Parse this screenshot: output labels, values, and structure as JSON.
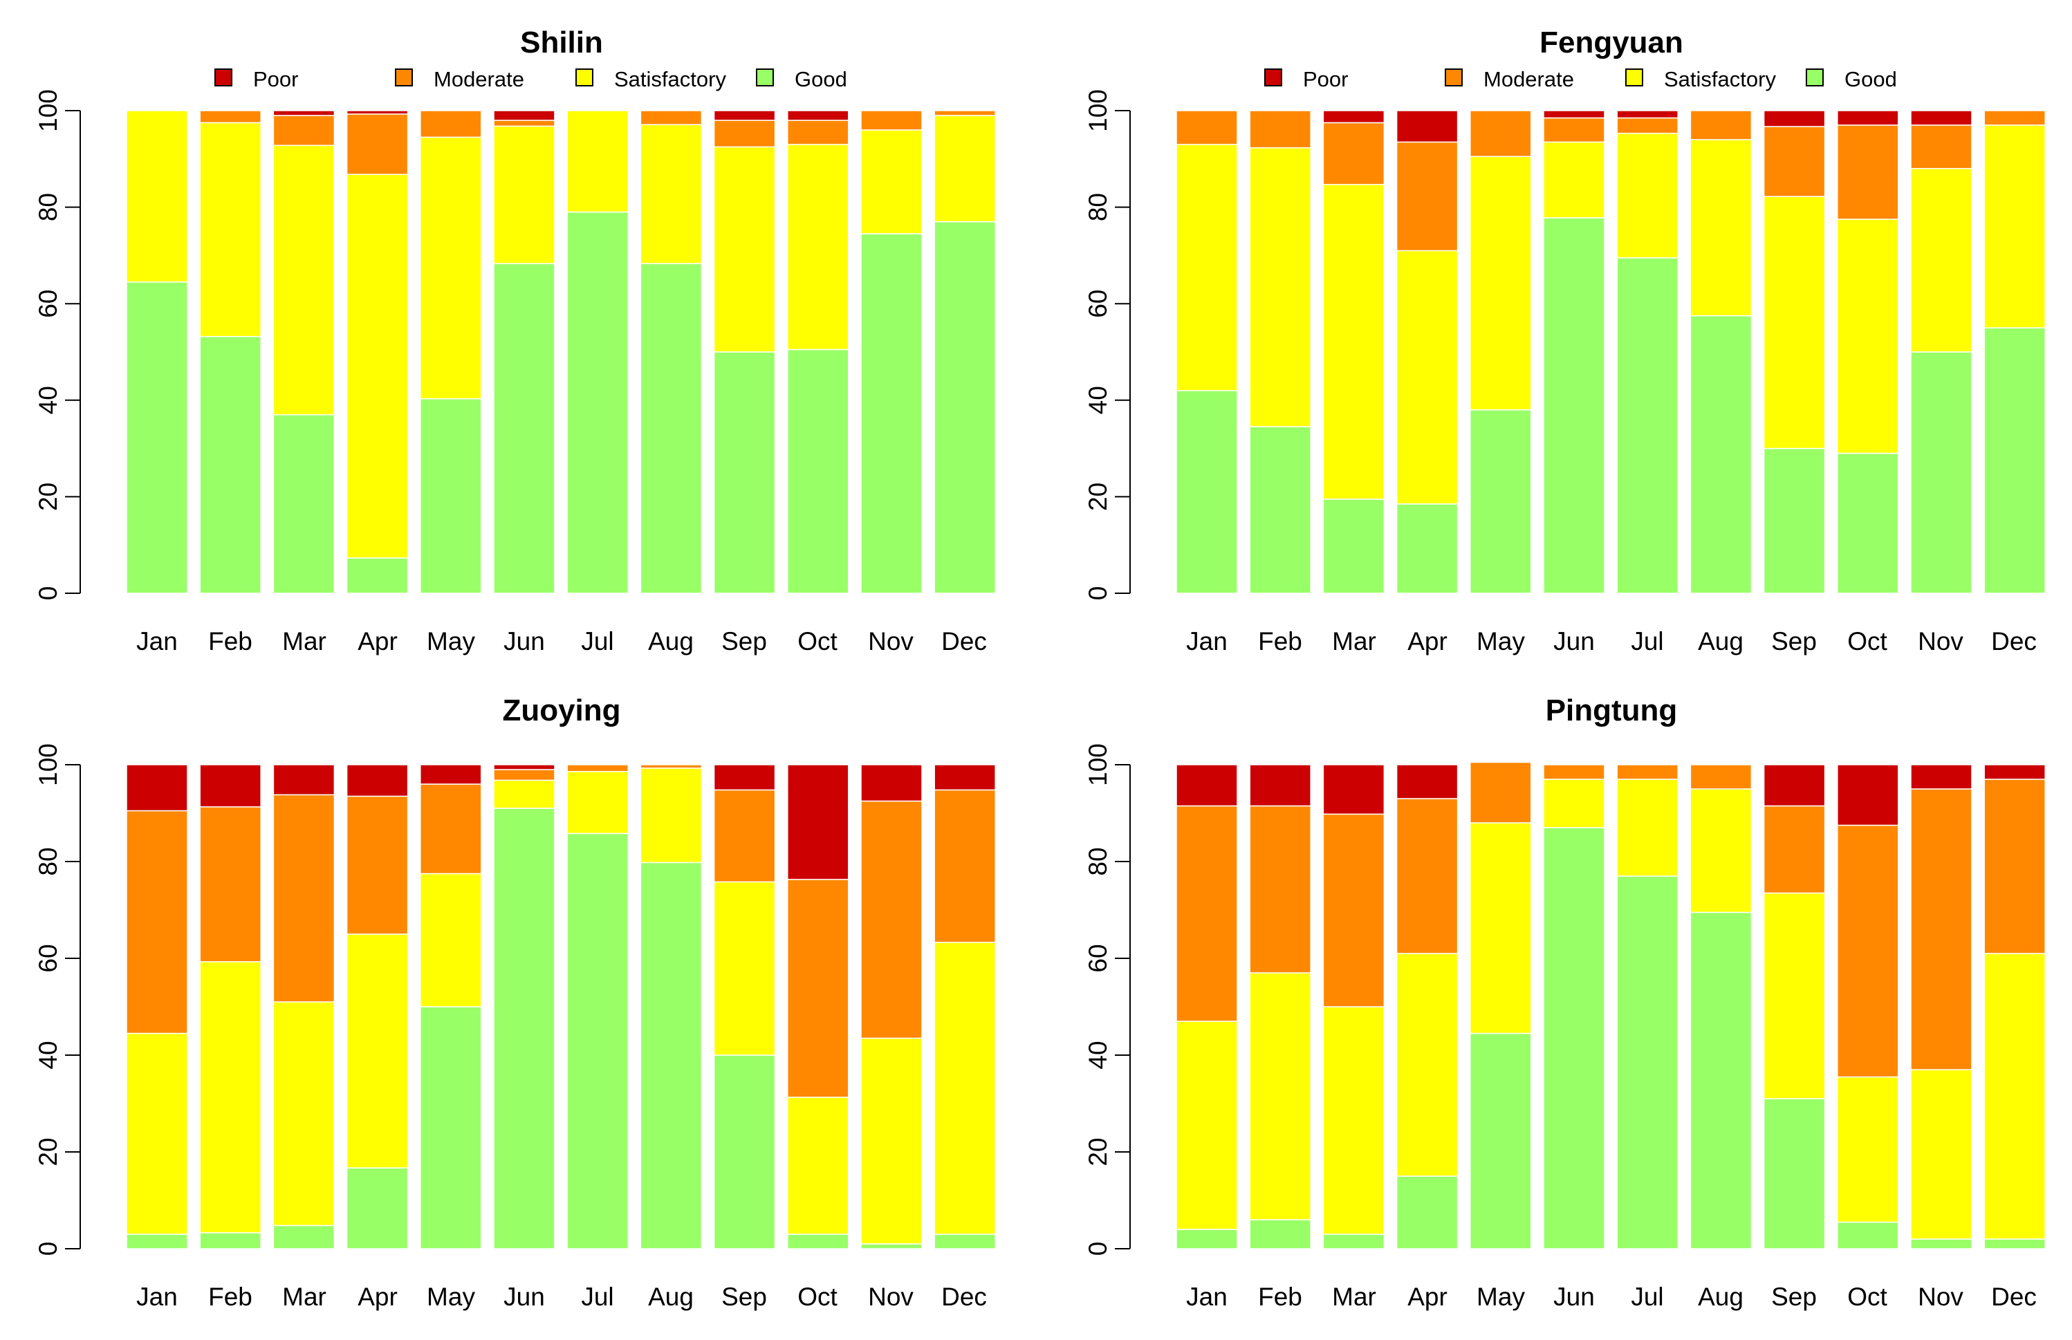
{
  "colors": {
    "Poor": "#cc0000",
    "Moderate": "#ff8800",
    "Satisfactory": "#ffff00",
    "Good": "#99ff66"
  },
  "chart_data": [
    {
      "type": "bar",
      "stacked": true,
      "title": "Shilin",
      "legend": [
        "Poor",
        "Moderate",
        "Satisfactory",
        "Good"
      ],
      "categories": [
        "Jan",
        "Feb",
        "Mar",
        "Apr",
        "May",
        "Jun",
        "Jul",
        "Aug",
        "Sep",
        "Oct",
        "Nov",
        "Dec"
      ],
      "yticks": [
        0,
        20,
        40,
        60,
        80,
        100
      ],
      "ylim": [
        0,
        100
      ],
      "series": [
        {
          "name": "Good",
          "values": [
            64.5,
            53.2,
            37,
            7.3,
            40.3,
            68.3,
            79,
            68.3,
            50,
            50.5,
            74.5,
            77
          ]
        },
        {
          "name": "Satisfactory",
          "values": [
            35.5,
            44.3,
            55.8,
            79.5,
            54.2,
            28.5,
            21,
            28.8,
            42.5,
            42.5,
            21.5,
            22
          ]
        },
        {
          "name": "Moderate",
          "values": [
            0,
            2.5,
            6.2,
            12.5,
            5.5,
            1.2,
            0,
            2.9,
            5.5,
            5,
            4,
            1
          ]
        },
        {
          "name": "Poor",
          "values": [
            0,
            0,
            1,
            0.7,
            0,
            2,
            0,
            0,
            2,
            2,
            0,
            0
          ]
        }
      ]
    },
    {
      "type": "bar",
      "stacked": true,
      "title": "Fengyuan",
      "legend": [
        "Poor",
        "Moderate",
        "Satisfactory",
        "Good"
      ],
      "categories": [
        "Jan",
        "Feb",
        "Mar",
        "Apr",
        "May",
        "Jun",
        "Jul",
        "Aug",
        "Sep",
        "Oct",
        "Nov",
        "Dec"
      ],
      "yticks": [
        0,
        20,
        40,
        60,
        80,
        100
      ],
      "ylim": [
        0,
        100
      ],
      "series": [
        {
          "name": "Good",
          "values": [
            42,
            34.5,
            19.5,
            18.5,
            38,
            77.8,
            69.5,
            57.5,
            30,
            29,
            50,
            55
          ]
        },
        {
          "name": "Satisfactory",
          "values": [
            51,
            57.8,
            65.2,
            52.5,
            52.5,
            15.7,
            25.8,
            36.5,
            52.2,
            48.5,
            38,
            42
          ]
        },
        {
          "name": "Moderate",
          "values": [
            7,
            7.7,
            12.8,
            22.5,
            9.5,
            5,
            3.2,
            6,
            14.5,
            19.5,
            9,
            3
          ]
        },
        {
          "name": "Poor",
          "values": [
            0,
            0,
            2.5,
            6.5,
            0,
            1.5,
            1.5,
            0,
            3.3,
            3,
            3,
            0
          ]
        }
      ]
    },
    {
      "type": "bar",
      "stacked": true,
      "title": "Zuoying",
      "legend": [],
      "categories": [
        "Jan",
        "Feb",
        "Mar",
        "Apr",
        "May",
        "Jun",
        "Jul",
        "Aug",
        "Sep",
        "Oct",
        "Nov",
        "Dec"
      ],
      "yticks": [
        0,
        20,
        40,
        60,
        80,
        100
      ],
      "ylim": [
        0,
        100
      ],
      "series": [
        {
          "name": "Good",
          "values": [
            3,
            3.3,
            4.8,
            16.7,
            50,
            91,
            85.8,
            79.8,
            40,
            3,
            1,
            3
          ]
        },
        {
          "name": "Satisfactory",
          "values": [
            41.5,
            56,
            46.2,
            48.3,
            27.5,
            5.8,
            12.8,
            19.5,
            35.8,
            28.3,
            42.5,
            60.3
          ]
        },
        {
          "name": "Moderate",
          "values": [
            46,
            32,
            42.8,
            28.5,
            18.5,
            2.2,
            1.4,
            0.7,
            19,
            45,
            49,
            31.5
          ]
        },
        {
          "name": "Poor",
          "values": [
            9.5,
            8.7,
            6.2,
            6.5,
            4,
            1,
            0,
            0,
            5.2,
            23.7,
            7.5,
            5.2
          ]
        }
      ]
    },
    {
      "type": "bar",
      "stacked": true,
      "title": "Pingtung",
      "legend": [],
      "categories": [
        "Jan",
        "Feb",
        "Mar",
        "Apr",
        "May",
        "Jun",
        "Jul",
        "Aug",
        "Sep",
        "Oct",
        "Nov",
        "Dec"
      ],
      "yticks": [
        0,
        20,
        40,
        60,
        80,
        100
      ],
      "ylim": [
        0,
        100
      ],
      "series": [
        {
          "name": "Good",
          "values": [
            4,
            6,
            3,
            15,
            44.5,
            87,
            77,
            69.5,
            31,
            5.5,
            2,
            2
          ]
        },
        {
          "name": "Satisfactory",
          "values": [
            43,
            51,
            47,
            46,
            43.5,
            10,
            20,
            25.5,
            42.5,
            30,
            35,
            59
          ]
        },
        {
          "name": "Moderate",
          "values": [
            44.5,
            34.5,
            39.8,
            32,
            12.5,
            3,
            3,
            5,
            18,
            52,
            58,
            36
          ]
        },
        {
          "name": "Poor",
          "values": [
            8.5,
            8.5,
            10.2,
            7,
            0,
            0,
            0,
            0,
            8.5,
            12.5,
            5,
            3
          ]
        }
      ]
    }
  ]
}
